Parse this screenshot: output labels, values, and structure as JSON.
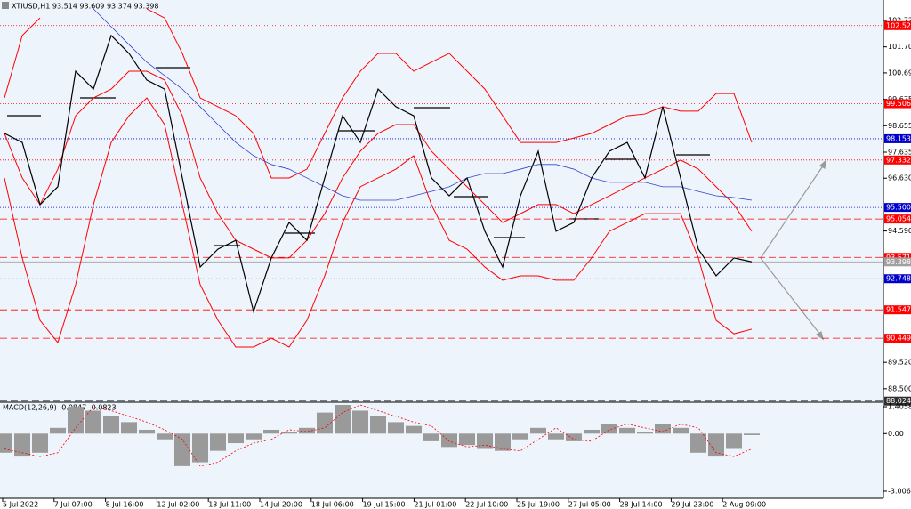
{
  "chart_data": [
    {
      "type": "line",
      "title": "XTIUSD,H1  93.514 93.609 93.374 93.398",
      "x_labels": [
        "5 Jul 2022",
        "7 Jul 07:00",
        "8 Jul 16:00",
        "12 Jul 02:00",
        "13 Jul 11:00",
        "14 Jul 20:00",
        "18 Jul 06:00",
        "19 Jul 15:00",
        "21 Jul 01:00",
        "22 Jul 10:00",
        "25 Jul 19:00",
        "27 Jul 05:00",
        "28 Jul 14:00",
        "29 Jul 23:00",
        "2 Aug 09:00"
      ],
      "ylim": [
        87.98,
        103.51
      ],
      "yticks": [
        {
          "value": 102.72,
          "label": "102.720"
        },
        {
          "value": 101.7,
          "label": "101.700"
        },
        100.695,
        99.675,
        98.655,
        97.635,
        {
          "value": 96.63,
          "label": "96.630"
        },
        {
          "value": 94.59,
          "label": "94.590"
        },
        {
          "value": 89.52,
          "label": "89.520"
        },
        {
          "value": 88.5,
          "label": "88.500"
        }
      ],
      "series": [
        {
          "color": "#ff0000",
          "width": 1,
          "values": [
            99.73,
            102.14,
            102.82,
            null,
            null,
            null,
            null,
            null,
            103.17,
            102.82,
            101.45,
            99.73,
            99.39,
            99.04,
            98.36,
            96.64,
            96.64,
            96.98,
            98.36,
            99.73,
            100.76,
            101.45,
            101.45,
            100.76,
            101.11,
            101.45,
            100.76,
            100.07,
            99.04,
            98.01,
            98.01,
            98.01,
            98.18,
            98.36,
            98.7,
            99.04,
            99.11,
            99.39,
            99.22,
            99.22,
            99.9,
            99.9,
            98.01
          ]
        },
        {
          "color": "#ff0000",
          "width": 1,
          "values": [
            98.36,
            96.64,
            95.61,
            96.98,
            99.04,
            99.73,
            100.07,
            100.76,
            100.76,
            100.42,
            99.04,
            96.64,
            95.26,
            94.23,
            93.89,
            93.55,
            93.55,
            94.23,
            95.26,
            96.64,
            97.67,
            98.36,
            98.7,
            98.7,
            97.67,
            96.98,
            96.3,
            95.61,
            94.92,
            95.26,
            95.61,
            95.61,
            95.26,
            95.61,
            95.95,
            96.3,
            96.64,
            96.98,
            97.33,
            96.98,
            96.3,
            95.61,
            94.58
          ]
        },
        {
          "color": "#ff0000",
          "width": 1,
          "values": [
            96.64,
            93.55,
            91.14,
            90.28,
            92.52,
            95.61,
            98.01,
            99.04,
            99.73,
            98.7,
            95.61,
            92.52,
            91.14,
            90.11,
            90.11,
            90.45,
            90.11,
            91.14,
            92.86,
            94.92,
            96.3,
            96.64,
            96.98,
            97.5,
            95.61,
            94.23,
            93.89,
            93.2,
            92.69,
            92.86,
            92.86,
            92.69,
            92.69,
            93.55,
            94.58,
            94.92,
            95.26,
            95.26,
            95.26,
            93.55,
            91.14,
            90.62,
            90.8
          ]
        },
        {
          "color": "#3344cc",
          "width": 0.8,
          "values": [
            null,
            null,
            null,
            null,
            null,
            103.17,
            102.48,
            101.79,
            101.11,
            100.59,
            100.07,
            99.39,
            98.7,
            98.01,
            97.5,
            97.16,
            96.98,
            96.64,
            96.3,
            95.95,
            95.78,
            95.78,
            95.78,
            95.95,
            96.12,
            96.3,
            96.64,
            96.81,
            96.81,
            96.98,
            97.16,
            97.16,
            96.98,
            96.64,
            96.47,
            96.47,
            96.47,
            96.3,
            96.3,
            96.12,
            95.95,
            95.88,
            95.78
          ]
        },
        {
          "color": "#000000",
          "width": 1.2,
          "values": [
            98.36,
            98.01,
            95.61,
            96.3,
            100.76,
            100.07,
            102.14,
            101.45,
            100.42,
            100.07,
            96.64,
            93.2,
            93.89,
            94.23,
            91.48,
            93.55,
            94.92,
            94.23,
            96.64,
            99.04,
            98.01,
            100.07,
            99.39,
            99.04,
            96.64,
            95.95,
            96.64,
            94.58,
            93.2,
            95.95,
            97.67,
            94.58,
            94.92,
            96.64,
            97.67,
            98.01,
            96.64,
            99.39,
            96.64,
            93.89,
            92.86,
            93.55,
            93.4
          ]
        }
      ],
      "levels": [
        {
          "value": 102.521,
          "color": "#ff0000",
          "style": "dotted"
        },
        {
          "value": 99.506,
          "color": "#ff0000",
          "style": "dotted"
        },
        {
          "value": 98.153,
          "color": "#0000cc",
          "style": "dotted"
        },
        {
          "value": 97.332,
          "color": "#ff0000",
          "style": "dotted"
        },
        {
          "value": 95.5,
          "label": "95.500",
          "color": "#0000cc",
          "style": "dotted"
        },
        {
          "value": 95.054,
          "color": "#ff0000",
          "style": "dashed"
        },
        {
          "value": 93.571,
          "color": "#ff0000",
          "style": "dashed"
        },
        {
          "value": 93.398,
          "color": "#a0a0a0",
          "style": "solid"
        },
        {
          "value": 92.748,
          "color": "#0000cc",
          "style": "dotted"
        },
        {
          "value": 91.547,
          "color": "#ff0000",
          "style": "dashed"
        },
        {
          "value": 90.449,
          "color": "#ff0000",
          "style": "dashed"
        },
        {
          "value": 88.024,
          "color": "#303030",
          "style": "dashed"
        }
      ]
    },
    {
      "type": "bar",
      "title": "MACD(12,26,9) -0.0847 -0.0823",
      "color": "#9a9a9a",
      "ylim": [
        -3.38,
        1.64
      ],
      "yticks": [
        1.4058,
        {
          "value": 0,
          "label": "0.00"
        },
        -3.0065
      ],
      "values": [
        -1.0,
        -1.2,
        -1.0,
        0.3,
        1.4,
        1.2,
        0.9,
        0.6,
        0.2,
        -0.3,
        -1.7,
        -1.5,
        -0.9,
        -0.5,
        -0.3,
        0.2,
        0.1,
        0.3,
        1.1,
        1.5,
        1.2,
        0.9,
        0.6,
        0.4,
        -0.4,
        -0.7,
        -0.6,
        -0.8,
        -0.9,
        -0.3,
        0.3,
        -0.3,
        -0.4,
        0.2,
        0.5,
        0.3,
        0.1,
        0.5,
        0.3,
        -1.0,
        -1.2,
        -0.8,
        -0.08
      ],
      "signal": {
        "color": "#ff0000",
        "values": [
          -0.8,
          -1.0,
          -1.2,
          -1.0,
          0.3,
          1.4,
          1.2,
          0.9,
          0.6,
          0.2,
          -0.3,
          -1.7,
          -1.5,
          -0.9,
          -0.5,
          -0.3,
          0.2,
          0.1,
          0.3,
          1.1,
          1.5,
          1.2,
          0.9,
          0.6,
          0.4,
          -0.4,
          -0.7,
          -0.6,
          -0.8,
          -0.9,
          -0.3,
          0.3,
          -0.3,
          -0.4,
          0.2,
          0.5,
          0.3,
          0.1,
          0.5,
          0.3,
          -1.0,
          -1.2,
          -0.8
        ]
      }
    }
  ]
}
